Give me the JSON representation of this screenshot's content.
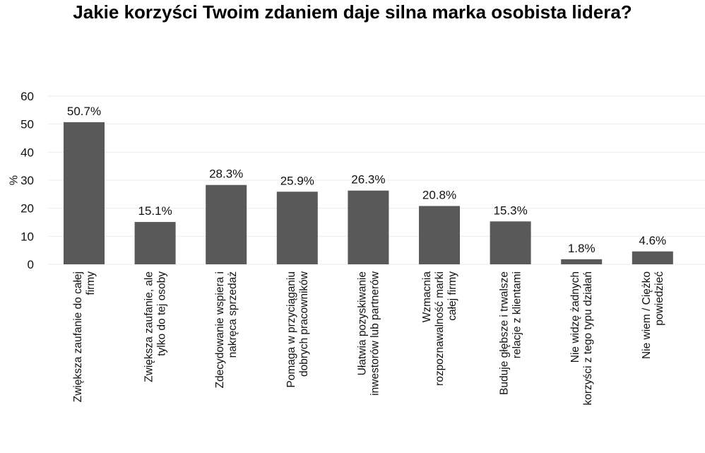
{
  "chart_data": {
    "type": "bar",
    "title": "Jakie korzyści Twoim zdaniem daje silna marka osobista lidera?",
    "xlabel": "",
    "ylabel": "%",
    "ylim": [
      0,
      60
    ],
    "yticks": [
      0,
      10,
      20,
      30,
      40,
      50,
      60
    ],
    "grid": true,
    "bar_color": "#595959",
    "grid_color": "#ebebeb",
    "categories": [
      [
        "Zwiększa zaufanie do całej",
        "firmy"
      ],
      [
        "Zwiększa zaufanie, ale",
        "tylko do tej osoby"
      ],
      [
        "Zdecydowanie wspiera i",
        "nakręca sprzedaż"
      ],
      [
        "Pomaga w przyciąganiu",
        "dobrych pracowników"
      ],
      [
        "Ułatwia pozyskiwanie",
        "inwestorów lub partnerów"
      ],
      [
        "Wzmacnia",
        "rozpoznawalność marki",
        "całej firmy"
      ],
      [
        "Buduje głębsze i trwalsze",
        "relacje z klientami"
      ],
      [
        "Nie widzę żadnych",
        "korzyści z tego typu działań"
      ],
      [
        "Nie wiem / Ciężko",
        "powiedzieć"
      ]
    ],
    "values": [
      50.7,
      15.1,
      28.3,
      25.9,
      26.3,
      20.8,
      15.3,
      1.8,
      4.6
    ],
    "value_labels": [
      "50.7%",
      "15.1%",
      "28.3%",
      "25.9%",
      "26.3%",
      "20.8%",
      "15.3%",
      "1.8%",
      "4.6%"
    ]
  }
}
